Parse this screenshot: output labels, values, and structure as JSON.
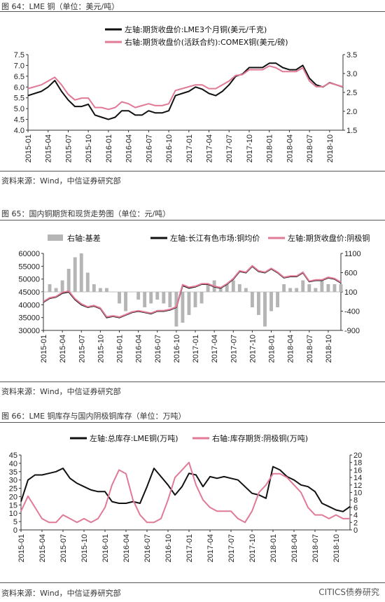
{
  "figures": [
    {
      "title": "图 64：LME 铜（单位：美元/吨）",
      "source": "资料来源：Wind，中信证券研究部"
    },
    {
      "title": "图 65：国内铜期货和现货走势图（单位：元/吨）",
      "source": "资料来源：Wind，中信证券研究部"
    },
    {
      "title": "图 66：LME 铜库存与国内阴极铜库存（单位：万吨）",
      "source": "资料来源：Wind，中信证券研究部"
    }
  ],
  "watermark": "CITICS债券研究",
  "chart_data": [
    {
      "type": "line",
      "x_ticks": [
        "2015-01",
        "2015-04",
        "2015-07",
        "2015-10",
        "2016-01",
        "2016-04",
        "2016-07",
        "2016-10",
        "2017-01",
        "2017-04",
        "2017-07",
        "2017-10",
        "2018-01",
        "2018-04",
        "2018-07",
        "2018-10"
      ],
      "x": [
        "2015-01",
        "2015-02",
        "2015-03",
        "2015-04",
        "2015-05",
        "2015-06",
        "2015-07",
        "2015-08",
        "2015-09",
        "2015-10",
        "2015-11",
        "2015-12",
        "2016-01",
        "2016-02",
        "2016-03",
        "2016-04",
        "2016-05",
        "2016-06",
        "2016-07",
        "2016-08",
        "2016-09",
        "2016-10",
        "2016-11",
        "2016-12",
        "2017-01",
        "2017-02",
        "2017-03",
        "2017-04",
        "2017-05",
        "2017-06",
        "2017-07",
        "2017-08",
        "2017-09",
        "2017-10",
        "2017-11",
        "2017-12",
        "2018-01",
        "2018-02",
        "2018-03",
        "2018-04",
        "2018-05",
        "2018-06",
        "2018-07",
        "2018-08",
        "2018-09",
        "2018-10",
        "2018-11",
        "2018-12"
      ],
      "left_axis": {
        "ticks": [
          "4.0",
          "4.5",
          "5.0",
          "5.5",
          "6.0",
          "6.5",
          "7.0",
          "7.5"
        ],
        "range": [
          4.0,
          7.5
        ]
      },
      "right_axis": {
        "ticks": [
          "1.5",
          "2.0",
          "2.5",
          "3.0",
          "3.5"
        ],
        "range": [
          1.5,
          3.5
        ]
      },
      "series": [
        {
          "name": "左轴:期货收盘价:LME3个月铜(美元/千克)",
          "axis": "left",
          "color": "#111111",
          "values": [
            5.6,
            5.7,
            5.8,
            6.0,
            6.3,
            5.8,
            5.4,
            5.1,
            5.1,
            5.2,
            4.7,
            4.6,
            4.5,
            4.6,
            4.9,
            4.9,
            4.7,
            4.7,
            4.9,
            4.8,
            4.8,
            4.9,
            5.6,
            5.7,
            5.8,
            6.0,
            5.9,
            5.7,
            5.6,
            5.8,
            6.1,
            6.5,
            6.6,
            6.9,
            6.9,
            6.9,
            7.1,
            7.1,
            6.9,
            6.8,
            6.8,
            7.0,
            6.4,
            6.1,
            6.0,
            6.2,
            6.1,
            6.0
          ]
        },
        {
          "name": "右轴:期货收盘价(活跃合约):COMEX铜(美元/磅)",
          "axis": "right",
          "color": "#e07a96",
          "values": [
            2.6,
            2.65,
            2.7,
            2.8,
            2.9,
            2.7,
            2.45,
            2.3,
            2.35,
            2.35,
            2.1,
            2.1,
            2.05,
            2.1,
            2.25,
            2.2,
            2.1,
            2.15,
            2.2,
            2.15,
            2.15,
            2.2,
            2.55,
            2.6,
            2.65,
            2.7,
            2.7,
            2.6,
            2.6,
            2.7,
            2.8,
            2.95,
            2.97,
            3.1,
            3.1,
            3.1,
            3.2,
            3.15,
            3.05,
            3.05,
            3.05,
            3.15,
            2.8,
            2.65,
            2.65,
            2.75,
            2.7,
            2.65
          ]
        }
      ]
    },
    {
      "type": "line",
      "x_ticks": [
        "2015-01",
        "2015-04",
        "2015-07",
        "2015-10",
        "2016-01",
        "2016-04",
        "2016-07",
        "2016-10",
        "2017-01",
        "2017-04",
        "2017-07",
        "2017-10",
        "2018-01",
        "2018-04",
        "2018-07",
        "2018-10"
      ],
      "x": [
        "2015-01",
        "2015-02",
        "2015-03",
        "2015-04",
        "2015-05",
        "2015-06",
        "2015-07",
        "2015-08",
        "2015-09",
        "2015-10",
        "2015-11",
        "2015-12",
        "2016-01",
        "2016-02",
        "2016-03",
        "2016-04",
        "2016-05",
        "2016-06",
        "2016-07",
        "2016-08",
        "2016-09",
        "2016-10",
        "2016-11",
        "2016-12",
        "2017-01",
        "2017-02",
        "2017-03",
        "2017-04",
        "2017-05",
        "2017-06",
        "2017-07",
        "2017-08",
        "2017-09",
        "2017-10",
        "2017-11",
        "2017-12",
        "2018-01",
        "2018-02",
        "2018-03",
        "2018-04",
        "2018-05",
        "2018-06",
        "2018-07",
        "2018-08",
        "2018-09",
        "2018-10",
        "2018-11",
        "2018-12"
      ],
      "left_axis": {
        "ticks": [
          "30000",
          "35000",
          "40000",
          "45000",
          "50000",
          "55000",
          "60000"
        ],
        "range": [
          30000,
          60000
        ]
      },
      "right_axis": {
        "ticks": [
          "-900",
          "-400",
          "100",
          "600",
          "1100"
        ],
        "range": [
          -900,
          1100
        ]
      },
      "series": [
        {
          "name": "右轴:基差",
          "axis": "right",
          "kind": "bar",
          "color": "#b5b5b5",
          "values": [
            100,
            300,
            200,
            400,
            700,
            1000,
            1100,
            600,
            300,
            200,
            200,
            100,
            -200,
            -400,
            100,
            -100,
            -300,
            -200,
            -100,
            -200,
            -300,
            -800,
            -700,
            -500,
            -300,
            -200,
            300,
            400,
            200,
            300,
            400,
            300,
            200,
            -300,
            -500,
            -800,
            -400,
            -300,
            300,
            200,
            200,
            400,
            300,
            200,
            400,
            300,
            300,
            300
          ]
        },
        {
          "name": "左轴:长江有色市场:铜均价",
          "axis": "left",
          "kind": "line",
          "color": "#111111",
          "values": [
            41000,
            42500,
            43000,
            44500,
            45000,
            42000,
            40000,
            39000,
            39500,
            38500,
            35000,
            35500,
            35000,
            36000,
            37000,
            37500,
            37000,
            36500,
            37500,
            37500,
            38000,
            39000,
            47500,
            46500,
            47000,
            48000,
            48000,
            47000,
            46500,
            48000,
            50000,
            53000,
            52500,
            55000,
            53000,
            52500,
            54000,
            52500,
            50500,
            51000,
            51000,
            52500,
            49000,
            49500,
            49500,
            50500,
            50000,
            48500
          ]
        },
        {
          "name": "左轴:期货收盘价:阴极铜",
          "axis": "left",
          "kind": "line",
          "color": "#e07a96",
          "values": [
            41200,
            42700,
            43200,
            44800,
            45300,
            42300,
            40300,
            39200,
            39700,
            38700,
            35300,
            35700,
            35200,
            36200,
            37200,
            37700,
            37200,
            36700,
            37700,
            37700,
            38200,
            39200,
            47800,
            46800,
            47200,
            48200,
            48200,
            47200,
            46700,
            48200,
            50200,
            53200,
            52700,
            55200,
            53200,
            52700,
            54200,
            52700,
            50700,
            51200,
            51200,
            52700,
            49200,
            49700,
            49700,
            50700,
            50200,
            48700
          ]
        }
      ]
    },
    {
      "type": "line",
      "x_ticks": [
        "2015-01",
        "2015-04",
        "2015-07",
        "2015-10",
        "2016-01",
        "2016-04",
        "2016-07",
        "2016-10",
        "2017-01",
        "2017-04",
        "2017-07",
        "2017-10",
        "2018-01",
        "2018-04",
        "2018-07",
        "2018-10"
      ],
      "x": [
        "2015-01",
        "2015-02",
        "2015-03",
        "2015-04",
        "2015-05",
        "2015-06",
        "2015-07",
        "2015-08",
        "2015-09",
        "2015-10",
        "2015-11",
        "2015-12",
        "2016-01",
        "2016-02",
        "2016-03",
        "2016-04",
        "2016-05",
        "2016-06",
        "2016-07",
        "2016-08",
        "2016-09",
        "2016-10",
        "2016-11",
        "2016-12",
        "2017-01",
        "2017-02",
        "2017-03",
        "2017-04",
        "2017-05",
        "2017-06",
        "2017-07",
        "2017-08",
        "2017-09",
        "2017-10",
        "2017-11",
        "2017-12",
        "2018-01",
        "2018-02",
        "2018-03",
        "2018-04",
        "2018-05",
        "2018-06",
        "2018-07",
        "2018-08",
        "2018-09",
        "2018-10",
        "2018-11",
        "2018-12"
      ],
      "left_axis": {
        "ticks": [
          "0",
          "5",
          "10",
          "15",
          "20",
          "25",
          "30",
          "35",
          "40",
          "45"
        ],
        "range": [
          0,
          45
        ]
      },
      "right_axis": {
        "ticks": [
          "0",
          "2",
          "4",
          "6",
          "8",
          "10",
          "12",
          "14",
          "16",
          "18",
          "20"
        ],
        "range": [
          0,
          20
        ]
      },
      "series": [
        {
          "name": "左轴:总库存:LME铜(万吨)",
          "axis": "left",
          "color": "#111111",
          "values": [
            17,
            30,
            33,
            33,
            34,
            35,
            37,
            31,
            28,
            26,
            24,
            23,
            23,
            17,
            16,
            16,
            17,
            16,
            26,
            37,
            32,
            27,
            21,
            26,
            34,
            33,
            26,
            32,
            31,
            32,
            31,
            30,
            26,
            22,
            21,
            19,
            38,
            36,
            32,
            30,
            27,
            26,
            23,
            16,
            14,
            12,
            11,
            14
          ]
        },
        {
          "name": "右轴:库存期货:阴极铜(万吨)",
          "axis": "right",
          "color": "#e07a96",
          "values": [
            5,
            9,
            6,
            3,
            2,
            2,
            4,
            3,
            2,
            3,
            2,
            3,
            6,
            12,
            16,
            15,
            8,
            4,
            2,
            2,
            3,
            8,
            14,
            16,
            18,
            12,
            8,
            6,
            5,
            5,
            5,
            3,
            2,
            5,
            10,
            12,
            15,
            15,
            14,
            12,
            10,
            6,
            4,
            4,
            3,
            4,
            3,
            3
          ]
        }
      ]
    }
  ]
}
